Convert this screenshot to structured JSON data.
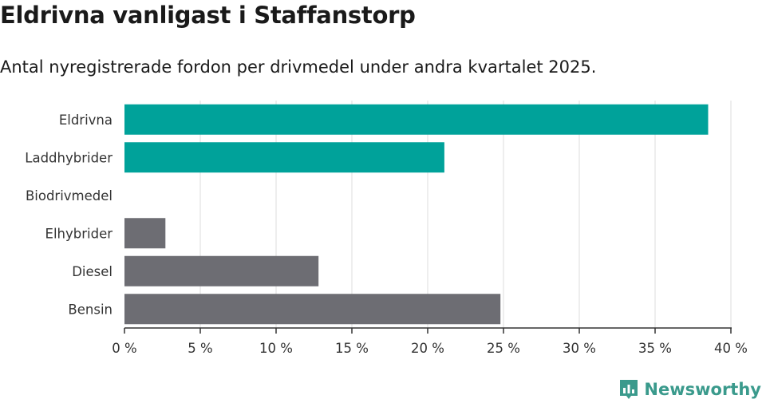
{
  "header": {
    "title": "Eldrivna vanligast i Staffanstorp",
    "subtitle": "Antal nyregistrerade fordon per drivmedel under andra kvartalet 2025."
  },
  "chart_data": {
    "type": "bar",
    "orientation": "horizontal",
    "categories": [
      "Eldrivna",
      "Laddhybrider",
      "Biodrivmedel",
      "Elhybrider",
      "Diesel",
      "Bensin"
    ],
    "values": [
      38.5,
      21.1,
      0,
      2.7,
      12.8,
      24.8
    ],
    "bar_colors": [
      "#00a29a",
      "#00a29a",
      "#00a29a",
      "#6d6d73",
      "#6d6d73",
      "#6d6d73"
    ],
    "xlim": [
      0,
      40
    ],
    "x_ticks": [
      0,
      5,
      10,
      15,
      20,
      25,
      30,
      35,
      40
    ],
    "x_tick_labels": [
      "0 %",
      "5 %",
      "10 %",
      "15 %",
      "20 %",
      "25 %",
      "30 %",
      "35 %",
      "40 %"
    ],
    "grid": true
  },
  "brand": {
    "name": "Newsworthy",
    "icon": "newsworthy-logo-icon",
    "color": "#3a9a8c"
  }
}
